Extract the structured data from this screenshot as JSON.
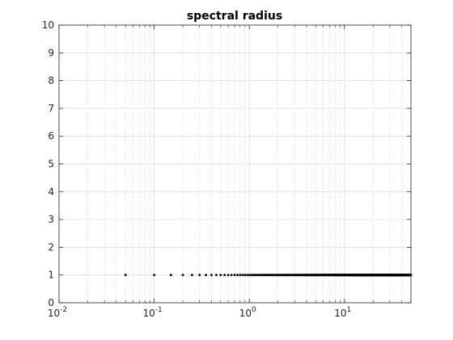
{
  "chart_data": {
    "type": "scatter",
    "title": "spectral radius",
    "xlabel": "",
    "ylabel": "",
    "xscale": "log",
    "xlim": [
      0.01,
      50
    ],
    "ylim": [
      0,
      10
    ],
    "grid": true,
    "y_ticks": [
      "0",
      "1",
      "2",
      "3",
      "4",
      "5",
      "6",
      "7",
      "8",
      "9",
      "10"
    ],
    "x_ticks": [
      {
        "value": 0.01,
        "base": "10",
        "exp": "-2"
      },
      {
        "value": 0.1,
        "base": "10",
        "exp": "-1"
      },
      {
        "value": 1,
        "base": "10",
        "exp": "0"
      },
      {
        "value": 10,
        "base": "10",
        "exp": "1"
      }
    ],
    "series": [
      {
        "marker_color": "#000000",
        "x_start": 0.05,
        "x_step": 0.05,
        "x_end": 50,
        "y_value": 1
      }
    ]
  }
}
